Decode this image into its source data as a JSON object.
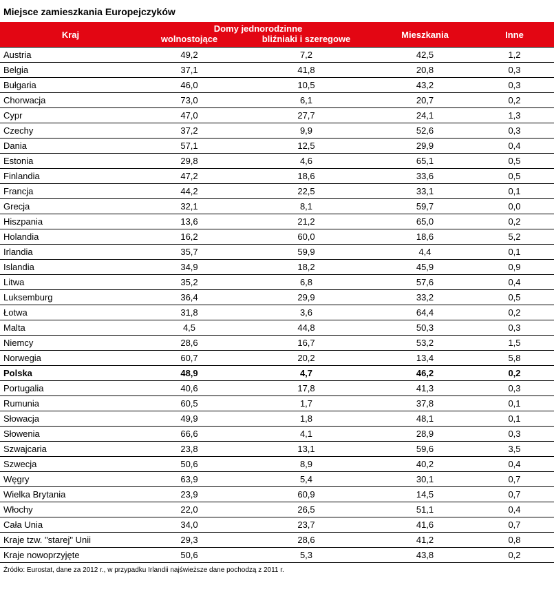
{
  "title": "Miejsce zamieszkania Europejczyków",
  "footer": "Źródło: Eurostat, dane za 2012 r., w przypadku Irlandii najświeższe dane pochodzą z 2011 r.",
  "colors": {
    "header_bg": "#e30613",
    "header_text": "#ffffff",
    "row_line": "#000000"
  },
  "chart_data": {
    "type": "table",
    "header": {
      "kraj": "Kraj",
      "group": "Domy jednorodzinne",
      "sub_detached": "wolnostojące",
      "sub_semi": "bliźniaki i szeregowe",
      "mieszkania": "Mieszkania",
      "inne": "Inne"
    },
    "columns": [
      "Kraj",
      "Domy jednorodzinne — wolnostojące",
      "Domy jednorodzinne — bliźniaki i szeregowe",
      "Mieszkania",
      "Inne"
    ],
    "rows": [
      {
        "country": "Austria",
        "values": [
          "49,2",
          "7,2",
          "42,5",
          "1,2"
        ]
      },
      {
        "country": "Belgia",
        "values": [
          "37,1",
          "41,8",
          "20,8",
          "0,3"
        ]
      },
      {
        "country": "Bułgaria",
        "values": [
          "46,0",
          "10,5",
          "43,2",
          "0,3"
        ]
      },
      {
        "country": "Chorwacja",
        "values": [
          "73,0",
          "6,1",
          "20,7",
          "0,2"
        ]
      },
      {
        "country": "Cypr",
        "values": [
          "47,0",
          "27,7",
          "24,1",
          "1,3"
        ]
      },
      {
        "country": "Czechy",
        "values": [
          "37,2",
          "9,9",
          "52,6",
          "0,3"
        ]
      },
      {
        "country": "Dania",
        "values": [
          "57,1",
          "12,5",
          "29,9",
          "0,4"
        ]
      },
      {
        "country": "Estonia",
        "values": [
          "29,8",
          "4,6",
          "65,1",
          "0,5"
        ]
      },
      {
        "country": "Finlandia",
        "values": [
          "47,2",
          "18,6",
          "33,6",
          "0,5"
        ]
      },
      {
        "country": "Francja",
        "values": [
          "44,2",
          "22,5",
          "33,1",
          "0,1"
        ]
      },
      {
        "country": "Grecja",
        "values": [
          "32,1",
          "8,1",
          "59,7",
          "0,0"
        ]
      },
      {
        "country": "Hiszpania",
        "values": [
          "13,6",
          "21,2",
          "65,0",
          "0,2"
        ]
      },
      {
        "country": "Holandia",
        "values": [
          "16,2",
          "60,0",
          "18,6",
          "5,2"
        ]
      },
      {
        "country": "Irlandia",
        "values": [
          "35,7",
          "59,9",
          "4,4",
          "0,1"
        ]
      },
      {
        "country": "Islandia",
        "values": [
          "34,9",
          "18,2",
          "45,9",
          "0,9"
        ]
      },
      {
        "country": "Litwa",
        "values": [
          "35,2",
          "6,8",
          "57,6",
          "0,4"
        ]
      },
      {
        "country": "Luksemburg",
        "values": [
          "36,4",
          "29,9",
          "33,2",
          "0,5"
        ]
      },
      {
        "country": "Łotwa",
        "values": [
          "31,8",
          "3,6",
          "64,4",
          "0,2"
        ]
      },
      {
        "country": "Malta",
        "values": [
          "4,5",
          "44,8",
          "50,3",
          "0,3"
        ]
      },
      {
        "country": "Niemcy",
        "values": [
          "28,6",
          "16,7",
          "53,2",
          "1,5"
        ]
      },
      {
        "country": "Norwegia",
        "values": [
          "60,7",
          "20,2",
          "13,4",
          "5,8"
        ]
      },
      {
        "country": "Polska",
        "values": [
          "48,9",
          "4,7",
          "46,2",
          "0,2"
        ],
        "bold": true
      },
      {
        "country": "Portugalia",
        "values": [
          "40,6",
          "17,8",
          "41,3",
          "0,3"
        ]
      },
      {
        "country": "Rumunia",
        "values": [
          "60,5",
          "1,7",
          "37,8",
          "0,1"
        ]
      },
      {
        "country": "Słowacja",
        "values": [
          "49,9",
          "1,8",
          "48,1",
          "0,1"
        ]
      },
      {
        "country": "Słowenia",
        "values": [
          "66,6",
          "4,1",
          "28,9",
          "0,3"
        ]
      },
      {
        "country": "Szwajcaria",
        "values": [
          "23,8",
          "13,1",
          "59,6",
          "3,5"
        ]
      },
      {
        "country": "Szwecja",
        "values": [
          "50,6",
          "8,9",
          "40,2",
          "0,4"
        ]
      },
      {
        "country": "Węgry",
        "values": [
          "63,9",
          "5,4",
          "30,1",
          "0,7"
        ]
      },
      {
        "country": "Wielka Brytania",
        "values": [
          "23,9",
          "60,9",
          "14,5",
          "0,7"
        ]
      },
      {
        "country": "Włochy",
        "values": [
          "22,0",
          "26,5",
          "51,1",
          "0,4"
        ]
      },
      {
        "country": "Cała Unia",
        "values": [
          "34,0",
          "23,7",
          "41,6",
          "0,7"
        ]
      },
      {
        "country": "Kraje tzw. \"starej\" Unii",
        "values": [
          "29,3",
          "28,6",
          "41,2",
          "0,8"
        ]
      },
      {
        "country": "Kraje nowoprzyjęte",
        "values": [
          "50,6",
          "5,3",
          "43,8",
          "0,2"
        ]
      }
    ]
  }
}
